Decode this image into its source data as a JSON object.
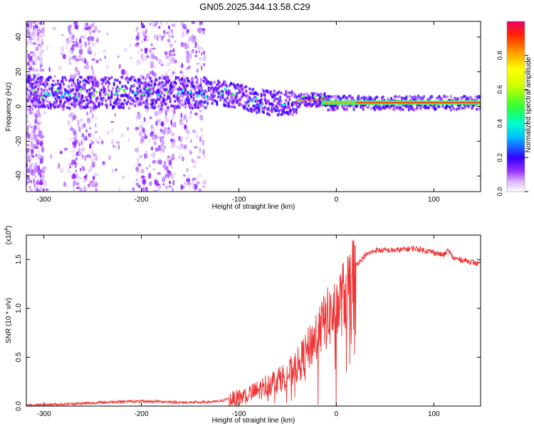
{
  "title": "GN05.2025.344.13.58.C29",
  "chart_data": [
    {
      "type": "heatmap",
      "name": "spectrogram",
      "xlabel": "Height of straight line (km)",
      "ylabel": "Frequency (Hz)",
      "xlim": [
        -318,
        148
      ],
      "ylim": [
        -49,
        49
      ],
      "xticks": [
        -300,
        -200,
        -100,
        0,
        100
      ],
      "yticks": [
        -40,
        -20,
        0,
        20,
        40
      ],
      "colorbar": {
        "label": "Normalized spectral amplitude",
        "ticks": [
          0.0,
          0.2,
          0.4,
          0.6,
          0.8
        ],
        "range": [
          0,
          1
        ]
      }
    },
    {
      "type": "line",
      "name": "snr",
      "xlabel": "Height of straight line (km)",
      "ylabel": "SNR (10 * v/v)",
      "scale_note": "(x10",
      "scale_exp": "4",
      "series_color": "#ee3333",
      "xlim": [
        -318,
        148
      ],
      "ylim": [
        0,
        1.75
      ],
      "xticks": [
        -300,
        -200,
        -100,
        0,
        100
      ],
      "yticks": [
        0.0,
        0.5,
        1.0,
        1.5
      ],
      "x": [
        -318,
        -290,
        -260,
        -240,
        -220,
        -200,
        -180,
        -160,
        -140,
        -120,
        -110,
        -100,
        -90,
        -80,
        -70,
        -60,
        -50,
        -40,
        -30,
        -20,
        -10,
        0,
        10,
        20,
        30,
        40,
        60,
        80,
        100,
        110,
        115,
        120,
        130,
        140,
        148
      ],
      "y": [
        0.01,
        0.02,
        0.03,
        0.04,
        0.05,
        0.05,
        0.05,
        0.04,
        0.04,
        0.05,
        0.08,
        0.1,
        0.14,
        0.18,
        0.25,
        0.3,
        0.35,
        0.45,
        0.6,
        0.8,
        0.95,
        1.05,
        1.25,
        1.45,
        1.55,
        1.6,
        1.6,
        1.62,
        1.58,
        1.55,
        1.6,
        1.52,
        1.5,
        1.48,
        1.45
      ]
    }
  ]
}
